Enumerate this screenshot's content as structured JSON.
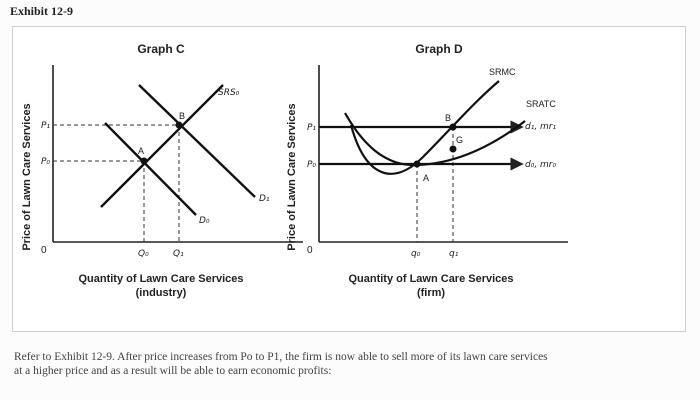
{
  "exhibit": {
    "title": "Exhibit 12-9"
  },
  "graph_c": {
    "title": "Graph C",
    "y_axis_label": "Price of Lawn Care Services",
    "x_axis_label_line1": "Quantity of Lawn Care Services",
    "x_axis_label_line2": "(industry)",
    "origin_label": "0",
    "curves": {
      "srs": "SRS₀",
      "d0": "D₀",
      "d1": "D₁"
    },
    "prices": {
      "p1": "P₁",
      "p0": "P₀"
    },
    "quantities": {
      "q0": "Q₀",
      "q1": "Q₁"
    },
    "points": {
      "a": "A",
      "b": "B"
    }
  },
  "graph_d": {
    "title": "Graph D",
    "y_axis_label": "Price of Lawn Care Services",
    "x_axis_label_line1": "Quantity of Lawn Care Services",
    "x_axis_label_line2": "(firm)",
    "origin_label": "0",
    "curves": {
      "srmc": "SRMC",
      "sratc": "SRATC",
      "d1_mr1": "d₁, mr₁",
      "d0_mr0": "d₀, mr₀"
    },
    "prices": {
      "p1": "P₁",
      "p0": "P₀"
    },
    "quantities": {
      "q0": "q₀",
      "q1": "q₁"
    },
    "points": {
      "a": "A",
      "b": "B",
      "g": "G"
    }
  },
  "caption": {
    "line1": "Refer to Exhibit 12-9. After price increases from Po to P1, the firm is now able to sell more of its lawn care services",
    "line2": "at a higher price and as a result will be able to earn economic profits:"
  }
}
